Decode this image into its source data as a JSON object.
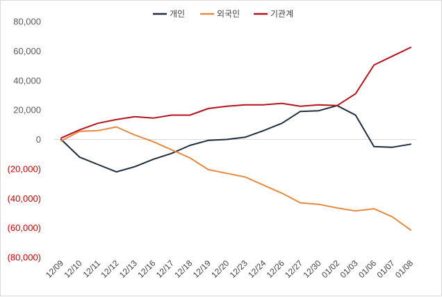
{
  "chart_data": {
    "type": "line",
    "title": "",
    "xlabel": "",
    "ylabel": "",
    "ylim": [
      -80000,
      80000
    ],
    "yticks": [
      80000,
      60000,
      40000,
      20000,
      0,
      -20000,
      -40000,
      -60000,
      -80000
    ],
    "ytick_labels": [
      "80,000",
      "60,000",
      "40,000",
      "20,000",
      "0",
      "(20,000)",
      "(40,000)",
      "(60,000)",
      "(80,000)"
    ],
    "categories": [
      "12/09",
      "12/10",
      "12/11",
      "12/12",
      "12/13",
      "12/16",
      "12/17",
      "12/18",
      "12/19",
      "12/20",
      "12/23",
      "12/24",
      "12/26",
      "12/27",
      "12/30",
      "01/02",
      "01/03",
      "01/06",
      "01/07",
      "01/08"
    ],
    "legend_position": "top-center",
    "series": [
      {
        "name": "개인",
        "color": "#1f2a3a",
        "values": [
          0,
          -12000,
          -17000,
          -22000,
          -18500,
          -13500,
          -9500,
          -4000,
          -600,
          0,
          1500,
          6000,
          11000,
          19000,
          19500,
          23000,
          16500,
          -4800,
          -5300,
          -3200
        ]
      },
      {
        "name": "외국인",
        "color": "#e6893d",
        "values": [
          -1000,
          5500,
          6000,
          8500,
          3000,
          -1500,
          -7000,
          -12500,
          -20500,
          -23000,
          -25500,
          -31000,
          -36500,
          -43000,
          -44000,
          -46500,
          -48500,
          -47000,
          -52500,
          -61500
        ]
      },
      {
        "name": "기관계",
        "color": "#b3121a",
        "values": [
          1000,
          6500,
          11000,
          13500,
          15500,
          14500,
          16500,
          16500,
          21000,
          22500,
          23500,
          23500,
          24500,
          22500,
          23500,
          23000,
          31000,
          50500,
          56500,
          62500
        ]
      }
    ]
  },
  "colors": {
    "axis_text_positive": "#595959",
    "axis_text_negative": "#c00000",
    "zero_line": "#d9d9d9"
  }
}
